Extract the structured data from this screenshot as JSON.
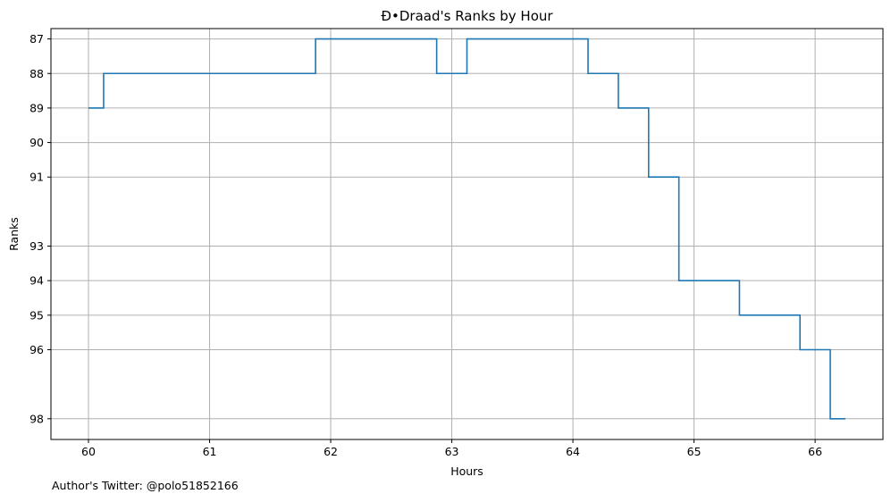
{
  "chart_data": {
    "type": "line",
    "step": "post",
    "title": "Đ•Draad's Ranks by Hour",
    "xlabel": "Hours",
    "ylabel": "Ranks",
    "xlim": [
      59.69,
      66.56
    ],
    "ylim": [
      98.6,
      86.7
    ],
    "y_inverted": true,
    "grid": true,
    "line_color": "#1f77b4",
    "x_ticks": [
      60,
      61,
      62,
      63,
      64,
      65,
      66
    ],
    "y_ticks": [
      87,
      88,
      89,
      90,
      91,
      93,
      94,
      95,
      96,
      98
    ],
    "series": [
      {
        "x": [
          60.0,
          60.125,
          61.875,
          62.875,
          63.125,
          64.125,
          64.375,
          64.625,
          64.875,
          65.375,
          65.875,
          66.125,
          66.25
        ],
        "y": [
          89,
          88,
          87,
          88,
          87,
          88,
          89,
          91,
          94,
          95,
          96,
          98,
          98
        ]
      }
    ]
  },
  "footer": {
    "text": "Author's Twitter: @polo51852166"
  }
}
